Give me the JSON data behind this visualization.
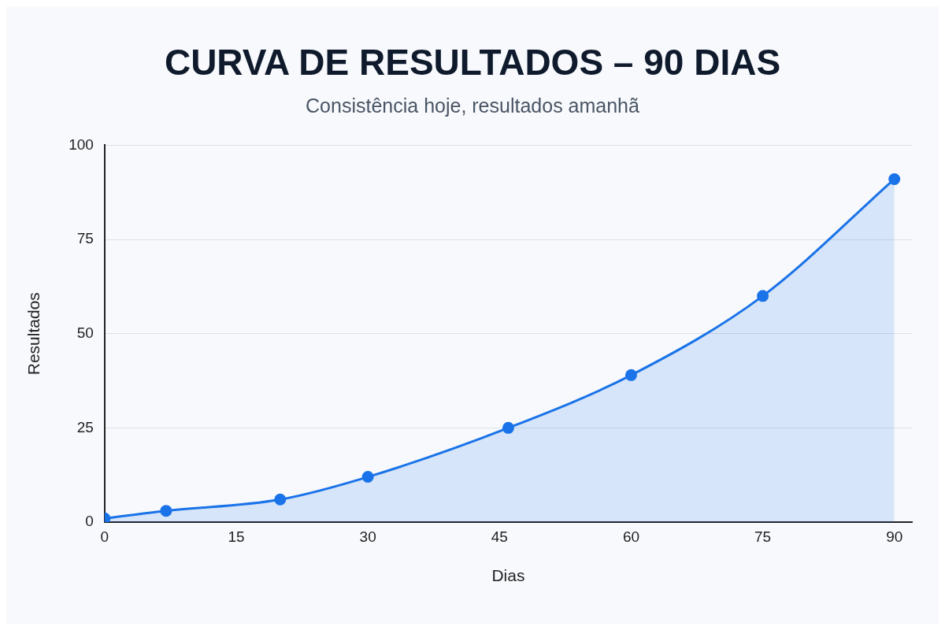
{
  "chart_data": {
    "type": "area",
    "title": "CURVA DE RESULTADOS – 90 DIAS",
    "subtitle": "Consistência hoje, resultados amanhã",
    "xlabel": "Dias",
    "ylabel": "Resultados",
    "x": [
      0,
      7,
      20,
      30,
      46,
      60,
      75,
      90
    ],
    "series": [
      {
        "color": "#1a73e8",
        "values": [
          1,
          3,
          6,
          12,
          25,
          39,
          60,
          91
        ]
      }
    ],
    "xlim": [
      0,
      92
    ],
    "xticks": [
      0,
      15,
      30,
      45,
      60,
      75,
      90
    ],
    "ylim": [
      0,
      100
    ],
    "yticks": [
      0,
      25,
      50,
      75,
      100
    ],
    "grid": "y",
    "marker": "circle",
    "legend": false
  }
}
